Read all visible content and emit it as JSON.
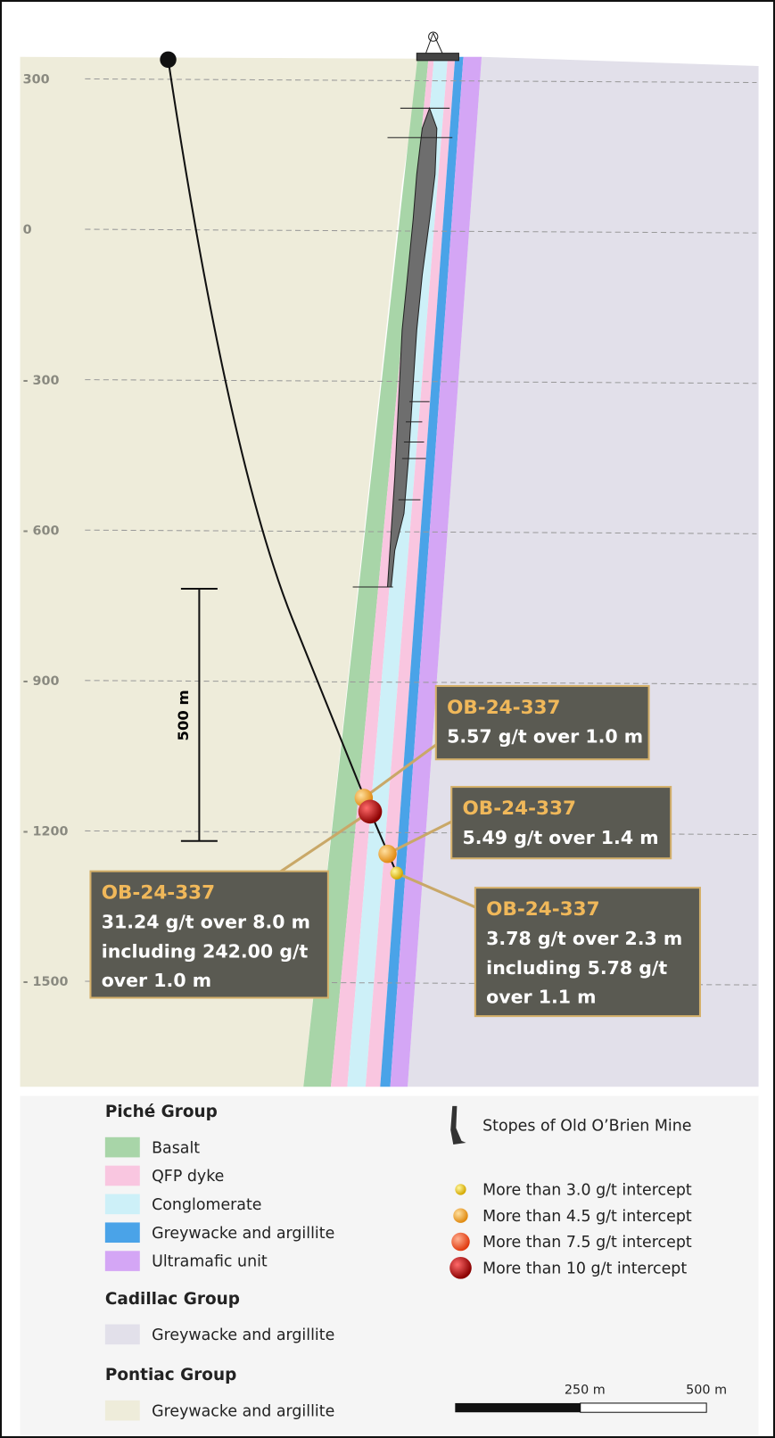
{
  "elevations": [
    "300",
    "0",
    "- 300",
    "- 600",
    "- 900",
    "- 1200",
    "- 1500"
  ],
  "scale_bar": "500 m",
  "callouts": [
    {
      "hole": "OB-24-337",
      "lines": [
        "5.57 g/t over 1.0 m"
      ]
    },
    {
      "hole": "OB-24-337",
      "lines": [
        "5.49 g/t over 1.4 m"
      ]
    },
    {
      "hole": "OB-24-337",
      "lines": [
        "3.78 g/t over 2.3 m",
        "including 5.78 g/t",
        "over 1.1 m"
      ]
    },
    {
      "hole": "OB-24-337",
      "lines": [
        "31.24 g/t over 8.0 m",
        "including 242.00 g/t",
        "over 1.0 m"
      ]
    }
  ],
  "legend": {
    "groups": [
      {
        "title": "Piché Group",
        "items": [
          "Basalt",
          "QFP dyke",
          "Conglomerate",
          "Greywacke and argillite",
          "Ultramafic unit"
        ]
      },
      {
        "title": "Cadillac Group",
        "items": [
          "Greywacke and argillite"
        ]
      },
      {
        "title": "Pontiac Group",
        "items": [
          "Greywacke and argillite"
        ]
      }
    ],
    "stopes": "Stopes of Old O’Brien Mine",
    "intercepts": [
      "More than 3.0 g/t intercept",
      "More than 4.5 g/t intercept",
      "More than 7.5 g/t intercept",
      "More than 10 g/t intercept"
    ],
    "scale": [
      "250 m",
      "500 m"
    ]
  }
}
